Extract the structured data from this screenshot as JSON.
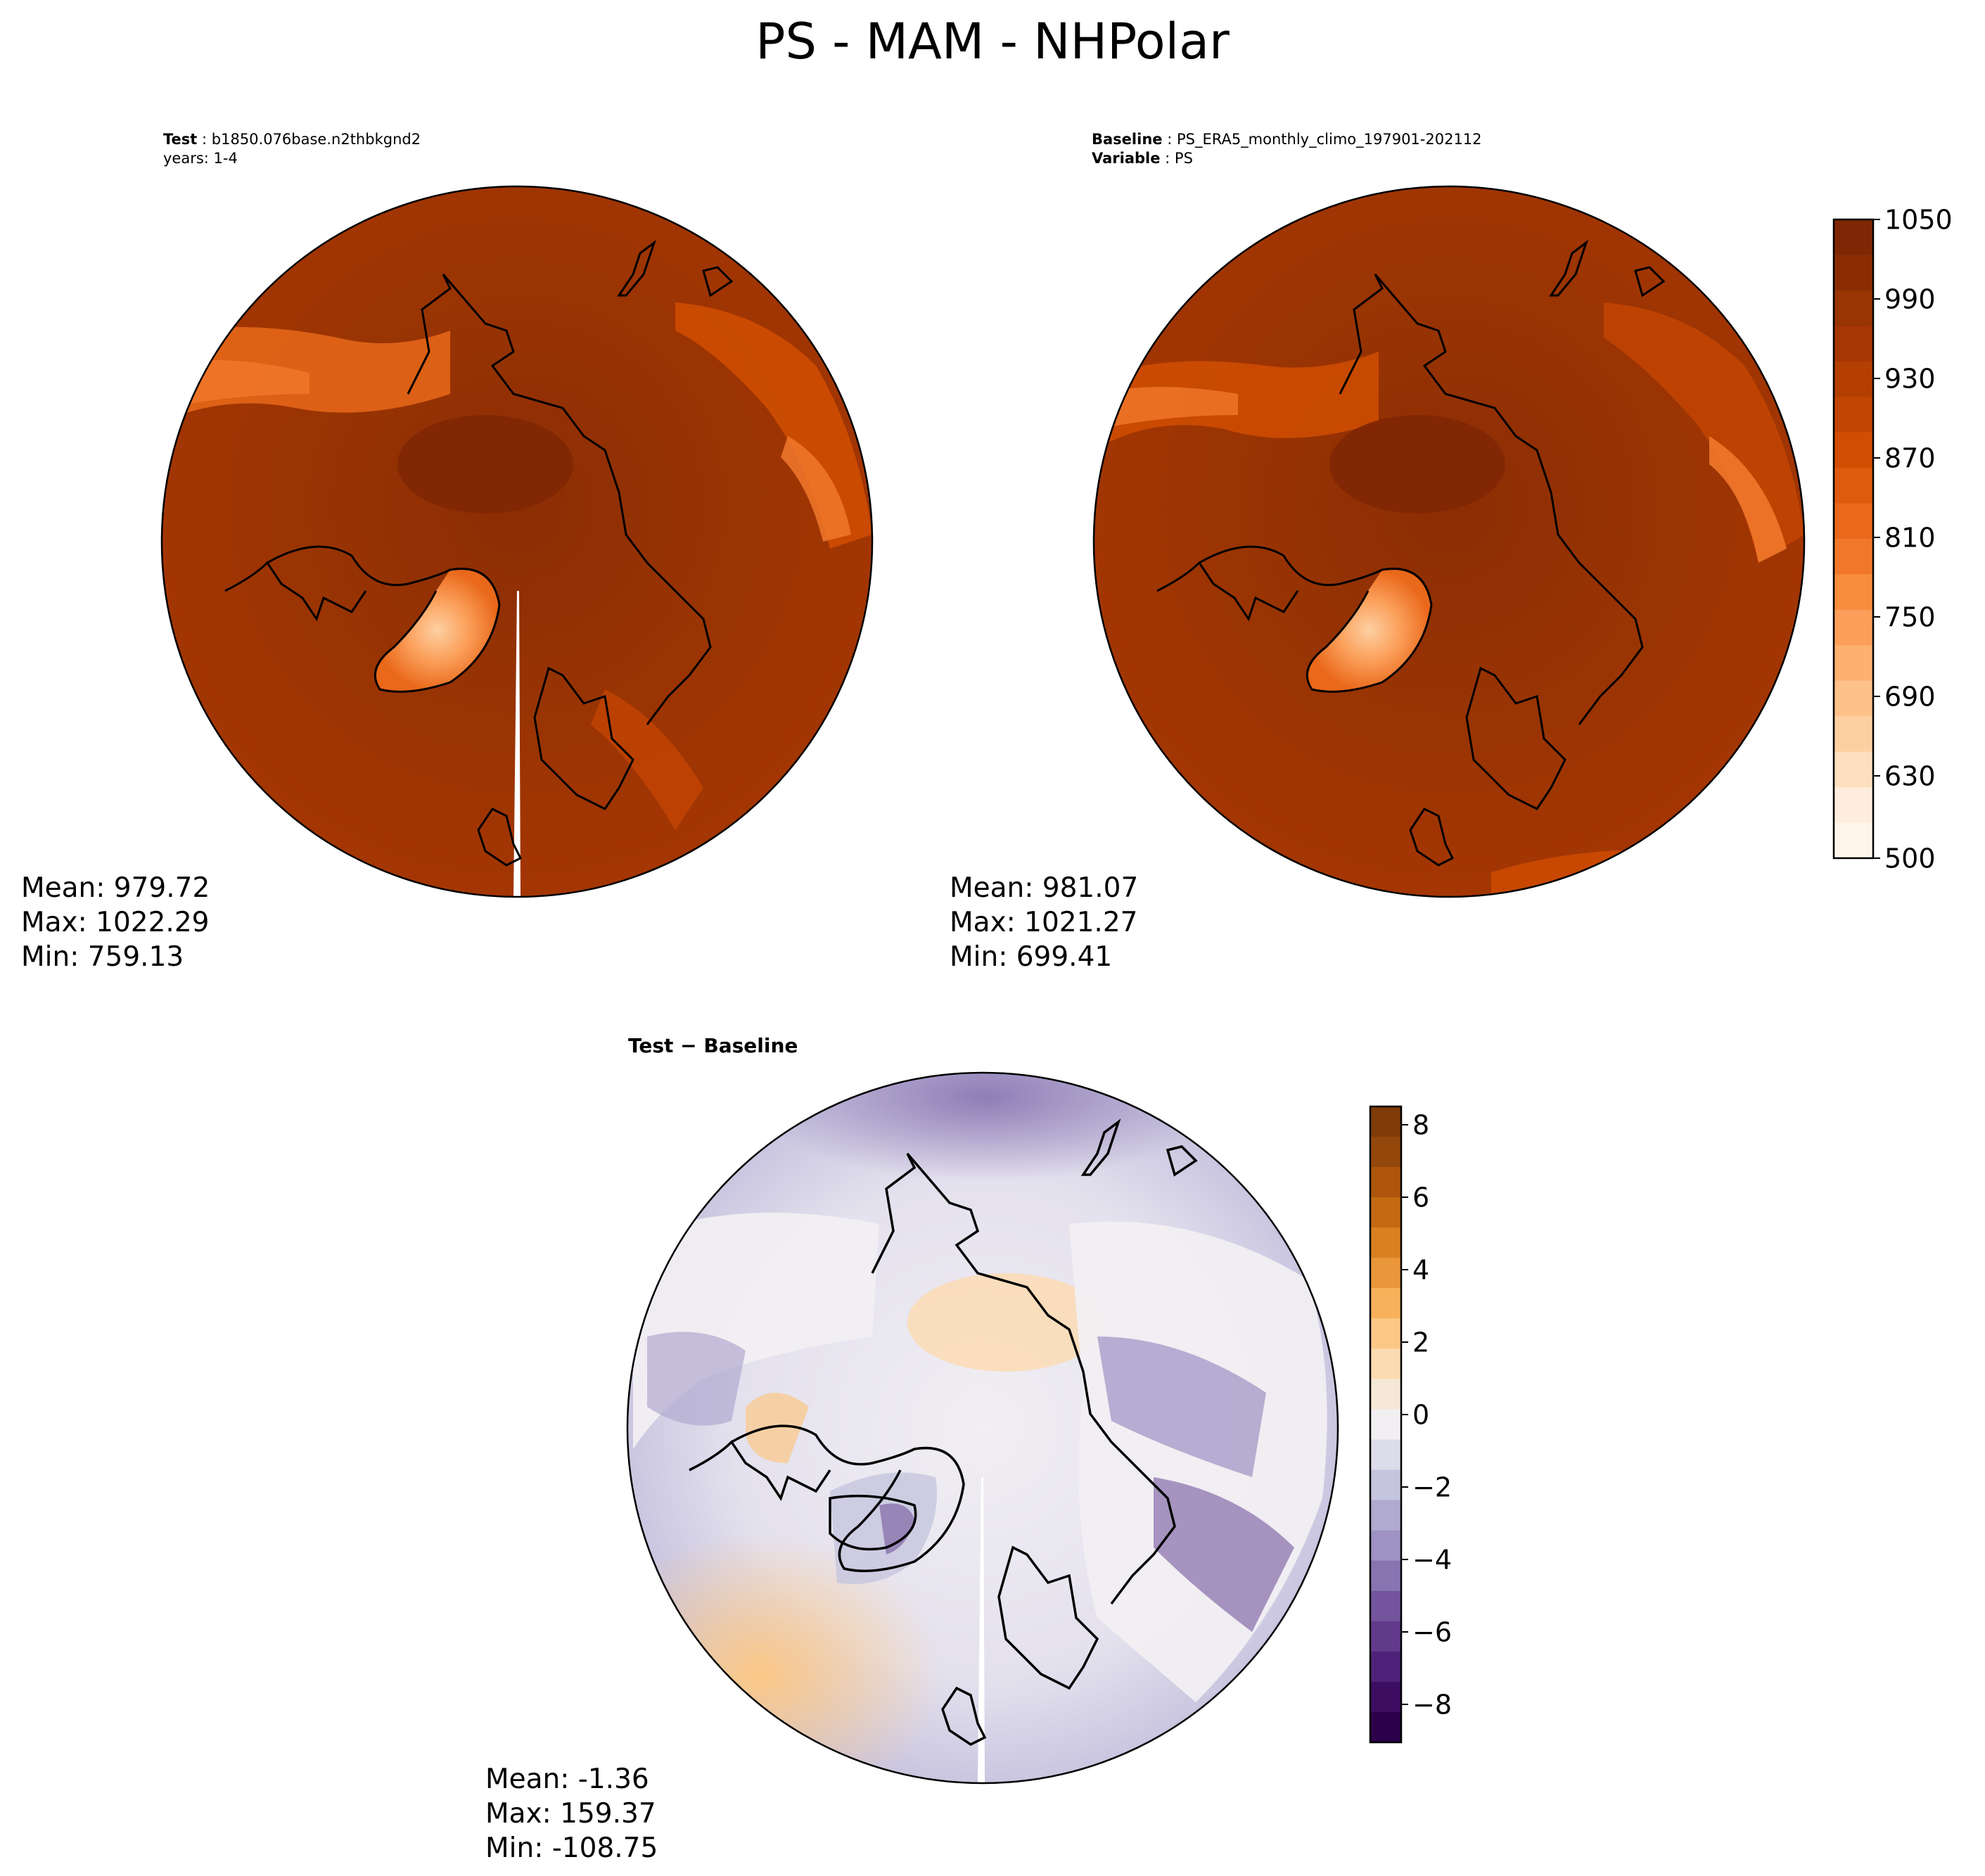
{
  "figure": {
    "title": "PS - MAM - NHPolar"
  },
  "panels": {
    "test": {
      "label_bold": "Test",
      "label_value": "b1850.076base.n2thbkgnd2",
      "line2": "years: 1-4",
      "stats": {
        "mean": "Mean: 979.72",
        "max": "Max: 1022.29",
        "min": "Min: 759.13"
      }
    },
    "baseline": {
      "label_bold": "Baseline",
      "label_value": "PS_ERA5_monthly_climo_197901-202112",
      "line2_bold": "Variable",
      "line2_value": "PS",
      "stats": {
        "mean": "Mean: 981.07",
        "max": "Max: 1021.27",
        "min": "Min: 699.41"
      }
    },
    "diff": {
      "title": "Test − Baseline",
      "stats": {
        "mean": "Mean: -1.36",
        "max": "Max: 159.37",
        "min": "Min: -108.75"
      }
    }
  },
  "chart_data": [
    {
      "type": "heatmap",
      "panel": "test",
      "projection": "north-polar-stereographic",
      "mean": 979.72,
      "max": 1022.29,
      "min": 759.13,
      "colormap": "Oranges",
      "levels_range": [
        500,
        1050
      ]
    },
    {
      "type": "heatmap",
      "panel": "baseline",
      "projection": "north-polar-stereographic",
      "mean": 981.07,
      "max": 1021.27,
      "min": 699.41,
      "colormap": "Oranges",
      "levels_range": [
        500,
        1050
      ]
    },
    {
      "type": "heatmap",
      "panel": "diff",
      "projection": "north-polar-stereographic",
      "mean": -1.36,
      "max": 159.37,
      "min": -108.75,
      "colormap": "PuOr_r",
      "levels_range": [
        -9,
        8.5
      ]
    }
  ],
  "colorbars": {
    "main": {
      "ticks": [
        "1050",
        "990",
        "930",
        "870",
        "810",
        "750",
        "690",
        "630",
        "500"
      ],
      "colors": [
        "#7f2704",
        "#8b2d04",
        "#993403",
        "#a63603",
        "#b53f03",
        "#c34502",
        "#d14d01",
        "#de5a0c",
        "#e9681a",
        "#f1782b",
        "#f88c3f",
        "#fb9f5a",
        "#fdb170",
        "#fdc189",
        "#fdd0a2",
        "#fee0c0",
        "#feeddc",
        "#fff5eb"
      ]
    },
    "diff": {
      "ticks": [
        "8",
        "6",
        "4",
        "2",
        "0",
        "−2",
        "−4",
        "−6",
        "−8"
      ],
      "colors": [
        "#7f3b08",
        "#94470a",
        "#ad560b",
        "#c36a13",
        "#d98020",
        "#ea963a",
        "#f7b15b",
        "#fcc886",
        "#fddbb0",
        "#f6e8d6",
        "#f1eff2",
        "#dcdcea",
        "#c6c5df",
        "#b0aad0",
        "#9d92c3",
        "#8874b1",
        "#74559d",
        "#623a8c",
        "#4f2279",
        "#3d0d62",
        "#2d004b"
      ]
    }
  },
  "colors": {
    "land_coast": "#000000",
    "ocean_field": "#993403",
    "greenland": "#fdb170"
  }
}
